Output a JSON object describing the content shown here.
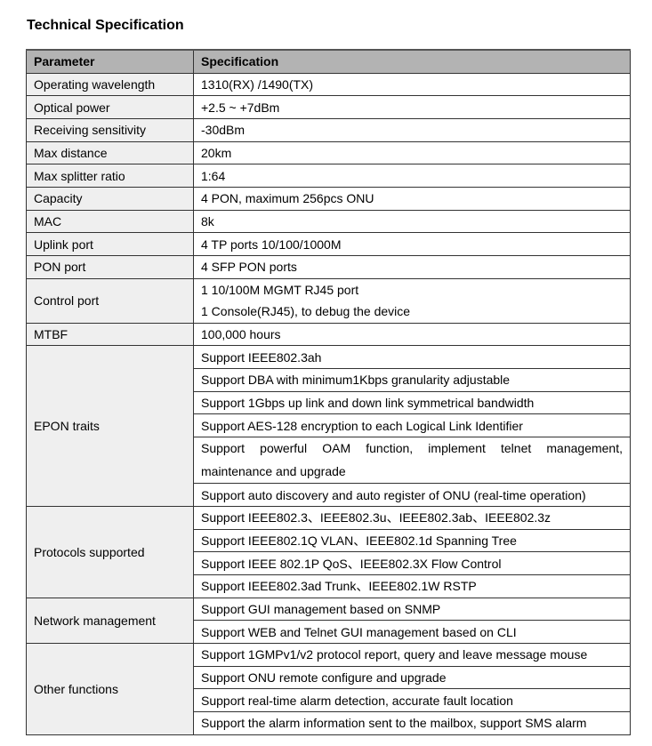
{
  "title": "Technical Specification",
  "headers": [
    "Parameter",
    "Specification"
  ],
  "rows": [
    {
      "param": "Operating wavelength",
      "specs": [
        "1310(RX) /1490(TX)"
      ]
    },
    {
      "param": "Optical power",
      "specs": [
        "+2.5 ~ +7dBm"
      ]
    },
    {
      "param": "Receiving sensitivity",
      "specs": [
        "-30dBm"
      ]
    },
    {
      "param": "Max distance",
      "specs": [
        "20km"
      ]
    },
    {
      "param": "Max splitter ratio",
      "specs": [
        "1:64"
      ]
    },
    {
      "param": "Capacity",
      "specs": [
        "4 PON, maximum 256pcs ONU"
      ]
    },
    {
      "param": "MAC",
      "specs": [
        "8k"
      ]
    },
    {
      "param": "Uplink port",
      "specs": [
        "4 TP ports 10/100/1000M"
      ]
    },
    {
      "param": "PON port",
      "specs": [
        "4 SFP PON ports"
      ]
    },
    {
      "param": "Control port",
      "specs": [
        "1 10/100M MGMT RJ45 port",
        "1 Console(RJ45), to debug the device"
      ],
      "noborder": true
    },
    {
      "param": "MTBF",
      "specs": [
        "100,000 hours"
      ]
    },
    {
      "param": "EPON traits",
      "specs": [
        "Support IEEE802.3ah",
        "Support DBA with minimum1Kbps granularity adjustable",
        "Support 1Gbps up link and down link symmetrical bandwidth",
        "Support AES-128 encryption to each Logical Link Identifier",
        "Support powerful OAM function, implement telnet management, maintenance and upgrade",
        "Support auto discovery and auto register of ONU (real-time operation)"
      ]
    },
    {
      "param": "Protocols supported",
      "specs": [
        "Support IEEE802.3、IEEE802.3u、IEEE802.3ab、IEEE802.3z",
        "Support IEEE802.1Q VLAN、IEEE802.1d Spanning Tree",
        "Support IEEE 802.1P QoS、IEEE802.3X Flow Control",
        "Support IEEE802.3ad Trunk、IEEE802.1W RSTP"
      ]
    },
    {
      "param": "Network management",
      "specs": [
        "Support GUI management based on SNMP",
        "Support WEB and Telnet GUI management based on CLI"
      ]
    },
    {
      "param": "Other functions",
      "specs": [
        "Support 1GMPv1/v2 protocol report, query and leave message mouse",
        "Support ONU remote configure and upgrade",
        "Support real-time alarm detection, accurate fault location",
        "Support the alarm information sent to the mailbox, support SMS alarm"
      ]
    }
  ]
}
